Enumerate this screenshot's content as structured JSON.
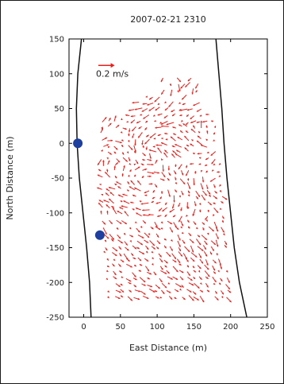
{
  "chart_data": {
    "type": "quiver",
    "title": "2007-02-21 2310",
    "xlabel": "East Distance (m)",
    "ylabel": "North Distance (m)",
    "xlim": [
      -20,
      250
    ],
    "ylim": [
      -250,
      150
    ],
    "xticks": [
      0,
      50,
      100,
      150,
      200,
      250
    ],
    "yticks": [
      150,
      100,
      50,
      0,
      -50,
      -100,
      -150,
      -200,
      -250
    ],
    "xtick_labels": [
      "0",
      "50",
      "100",
      "150",
      "200",
      "250"
    ],
    "ytick_labels": [
      "150",
      "100",
      "50",
      "0",
      "-50",
      "-100",
      "-150",
      "-200",
      "-250"
    ],
    "grid": false,
    "arrow_color": "#e8201c",
    "marker_color": "#1f3f9e",
    "boundary_color": "#111111",
    "scale_arrow": {
      "label": "0.2 m/s",
      "x": 20,
      "y": 112,
      "length_m": 20
    },
    "markers": [
      {
        "x": -8,
        "y": 0
      },
      {
        "x": 22,
        "y": -132
      }
    ],
    "boundaries": [
      {
        "points": [
          [
            -3,
            150
          ],
          [
            -8,
            100
          ],
          [
            -10,
            50
          ],
          [
            -9,
            0
          ],
          [
            -6,
            -50
          ],
          [
            -1,
            -100
          ],
          [
            4,
            -150
          ],
          [
            8,
            -200
          ],
          [
            10,
            -250
          ]
        ]
      },
      {
        "points": [
          [
            180,
            150
          ],
          [
            184,
            100
          ],
          [
            188,
            50
          ],
          [
            191,
            0
          ],
          [
            195,
            -50
          ],
          [
            200,
            -100
          ],
          [
            205,
            -150
          ],
          [
            212,
            -200
          ],
          [
            222,
            -250
          ]
        ]
      }
    ],
    "vector_field": {
      "x_min": 25,
      "x_max": 210,
      "y_min": -220,
      "y_max": 95,
      "spacing_x": 9,
      "spacing_y": 9,
      "arrow_scale": 60,
      "speed_range_mps": [
        0.03,
        0.18
      ],
      "description": "Dense red velocity vectors between the two boundaries; upper region mixed/eddy-like, lower region predominantly flowing toward south-east."
    }
  }
}
